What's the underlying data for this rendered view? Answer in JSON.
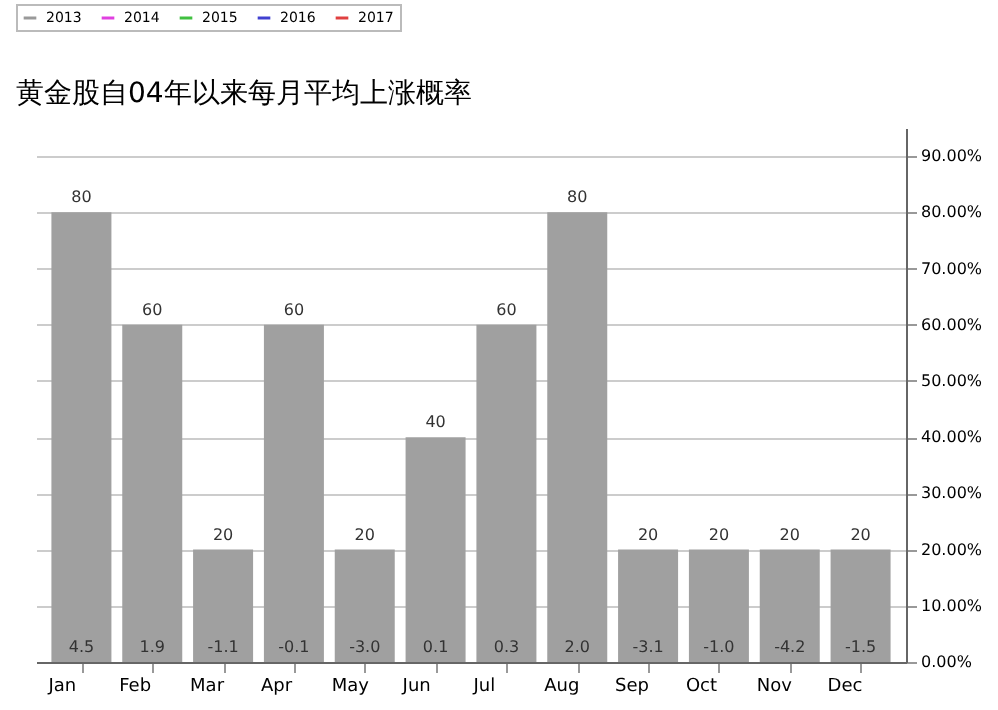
{
  "chart_data": {
    "type": "bar",
    "title": "黄金股自04年以来每月平均上涨概率",
    "categories": [
      "Jan",
      "Feb",
      "Mar",
      "Apr",
      "May",
      "Jun",
      "Jul",
      "Aug",
      "Sep",
      "Oct",
      "Nov",
      "Dec"
    ],
    "series": [
      {
        "color": "#a0a0a0",
        "values": [
          80,
          60,
          20,
          60,
          20,
          40,
          60,
          80,
          20,
          20,
          20,
          20
        ]
      },
      {
        "type": "line",
        "name": "2013",
        "color": "#999999",
        "values": [
          null,
          null,
          null,
          null,
          null,
          null,
          null,
          null,
          null,
          null,
          null,
          null
        ]
      },
      {
        "type": "line",
        "name": "2014",
        "color": "#e040e0",
        "values": [
          null,
          null,
          null,
          null,
          null,
          null,
          null,
          null,
          null,
          null,
          null,
          null
        ]
      },
      {
        "type": "line",
        "name": "2015",
        "color": "#40c040",
        "values": [
          null,
          null,
          null,
          null,
          null,
          null,
          null,
          null,
          null,
          null,
          null,
          null
        ]
      },
      {
        "type": "line",
        "name": "2016",
        "color": "#4040d0",
        "values": [
          null,
          null,
          null,
          null,
          null,
          null,
          null,
          null,
          null,
          null,
          null,
          null
        ]
      },
      {
        "type": "line",
        "name": "2017",
        "color": "#e04040",
        "values": [
          null,
          null,
          null,
          null,
          null,
          null,
          null,
          null,
          null,
          null,
          null,
          null
        ]
      }
    ],
    "ylim": [
      0,
      95
    ],
    "yticks": [
      {
        "value": 0,
        "label": "0.00%"
      },
      {
        "value": 10,
        "label": "10.00%"
      },
      {
        "value": 20,
        "label": "20.00%"
      },
      {
        "value": 30,
        "label": "30.00%"
      },
      {
        "value": 40,
        "label": "40.00%"
      },
      {
        "value": 50,
        "label": "50.00%"
      },
      {
        "value": 60,
        "label": "60.00%"
      },
      {
        "value": 70,
        "label": "70.00%"
      },
      {
        "value": 80,
        "label": "80.00%"
      },
      {
        "value": 90,
        "label": "90.00%"
      }
    ],
    "grid": "y",
    "legend": "top left",
    "data_labels": true,
    "annotations": [
      "4.5",
      "1.9",
      "-1.1",
      "-0.1",
      "-3.0",
      "0.1",
      "0.3",
      "2.0",
      "-3.1",
      "-1.0",
      "-4.2",
      "-1.5"
    ]
  }
}
